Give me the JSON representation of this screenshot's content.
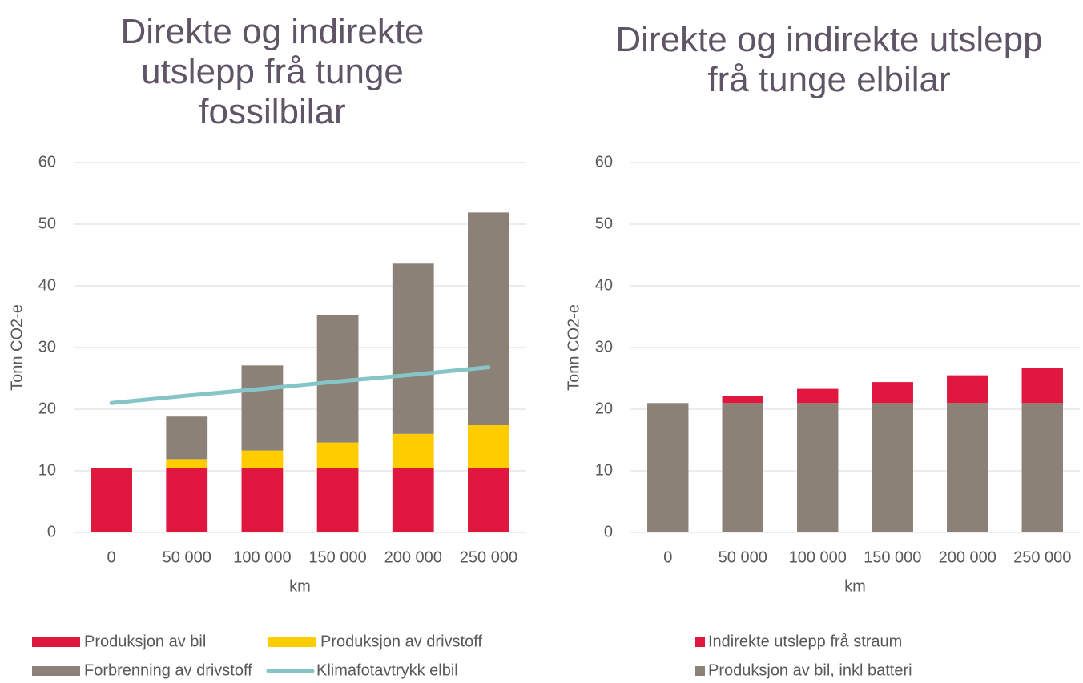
{
  "chart_data": [
    {
      "type": "bar",
      "stacked": true,
      "title": "Direkte og indirekte utslepp frå tunge fossilbilar",
      "xlabel": "km",
      "ylabel": "Tonn CO2-e",
      "categories": [
        "0",
        "50 000",
        "100 000",
        "150 000",
        "200 000",
        "250 000"
      ],
      "ylim": [
        0,
        60
      ],
      "yticks": [
        0,
        10,
        20,
        30,
        40,
        50,
        60
      ],
      "grid": true,
      "series": [
        {
          "name": "Produksjon av bil",
          "color": "#e0173f",
          "values": [
            10.5,
            10.5,
            10.5,
            10.5,
            10.5,
            10.5
          ]
        },
        {
          "name": "Produksjon av drivstoff",
          "color": "#ffcc00",
          "values": [
            0,
            1.4,
            2.8,
            4.1,
            5.5,
            6.9
          ]
        },
        {
          "name": "Forbrenning av drivstoff",
          "color": "#8b8176",
          "values": [
            0,
            6.9,
            13.8,
            20.7,
            27.6,
            34.5
          ]
        },
        {
          "name": "Klimafotavtrykk elbil",
          "color": "#86c5c7",
          "type": "line",
          "values": [
            21,
            22.2,
            23.3,
            24.5,
            25.6,
            26.8
          ]
        }
      ]
    },
    {
      "type": "bar",
      "stacked": true,
      "title": "Direkte og indirekte utslepp frå tunge elbilar",
      "xlabel": "km",
      "ylabel": "Tonn CO2-e",
      "categories": [
        "0",
        "50 000",
        "100 000",
        "150 000",
        "200 000",
        "250 000"
      ],
      "ylim": [
        0,
        60
      ],
      "yticks": [
        0,
        10,
        20,
        30,
        40,
        50,
        60
      ],
      "grid": true,
      "series": [
        {
          "name": "Produksjon av bil, inkl batteri",
          "color": "#8b8176",
          "values": [
            21,
            21,
            21,
            21,
            21,
            21
          ]
        },
        {
          "name": "Indirekte utslepp frå straum",
          "color": "#e0173f",
          "values": [
            0,
            1.1,
            2.3,
            3.4,
            4.5,
            5.7
          ]
        }
      ]
    }
  ]
}
